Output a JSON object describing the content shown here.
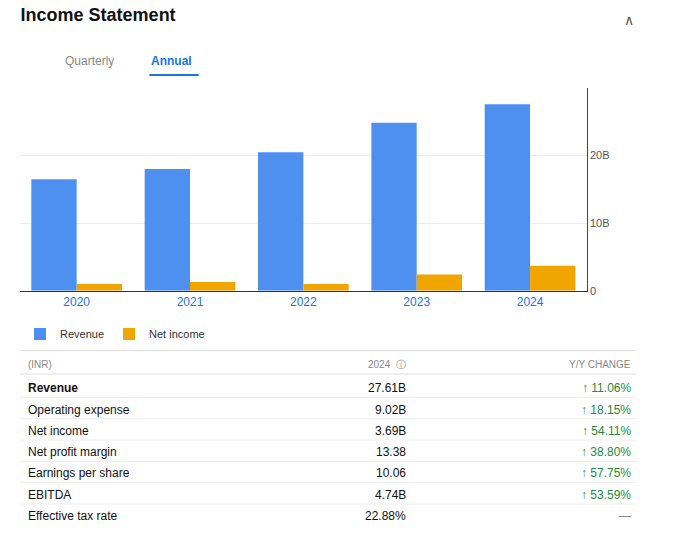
{
  "chart_data": {
    "type": "bar",
    "title": "Income Statement",
    "annotations": [
      "∧",
      "Quarterly",
      "Annual"
    ],
    "categories": [
      "2020",
      "2021",
      "2022",
      "2023",
      "2024"
    ],
    "series": [
      {
        "name": "Revenue",
        "color": "#4d90f0",
        "values": [
          16.5,
          18.0,
          20.5,
          24.87,
          27.61
        ]
      },
      {
        "name": "Net income",
        "color": "#f0a500",
        "values": [
          1.0,
          1.3,
          1.0,
          2.4,
          3.69
        ]
      }
    ],
    "ylim": [
      0,
      30
    ],
    "yticks": [
      0,
      {
        "value": 10,
        "label": "10B"
      },
      {
        "value": 20,
        "label": "20B"
      }
    ],
    "grid": true,
    "legend": "bottom",
    "table": {
      "columns": [
        "(INR)",
        "2024  ⓘ",
        "Y/Y CHANGE"
      ],
      "rows": [
        [
          "Revenue",
          "27.61B",
          "↑ 11.06%"
        ],
        [
          "Operating expense",
          "9.02B",
          "↑ 18.15%"
        ],
        [
          "Net income",
          "3.69B",
          "↑ 54.11%"
        ],
        [
          "Net profit margin",
          "13.38",
          "↑ 38.80%"
        ],
        [
          "Earnings per share",
          "10.06",
          "↑ 57.75%"
        ],
        [
          "EBITDA",
          "4.74B",
          "↑ 53.59%"
        ],
        [
          "Effective tax rate",
          "22.88%",
          "—"
        ]
      ]
    }
  }
}
